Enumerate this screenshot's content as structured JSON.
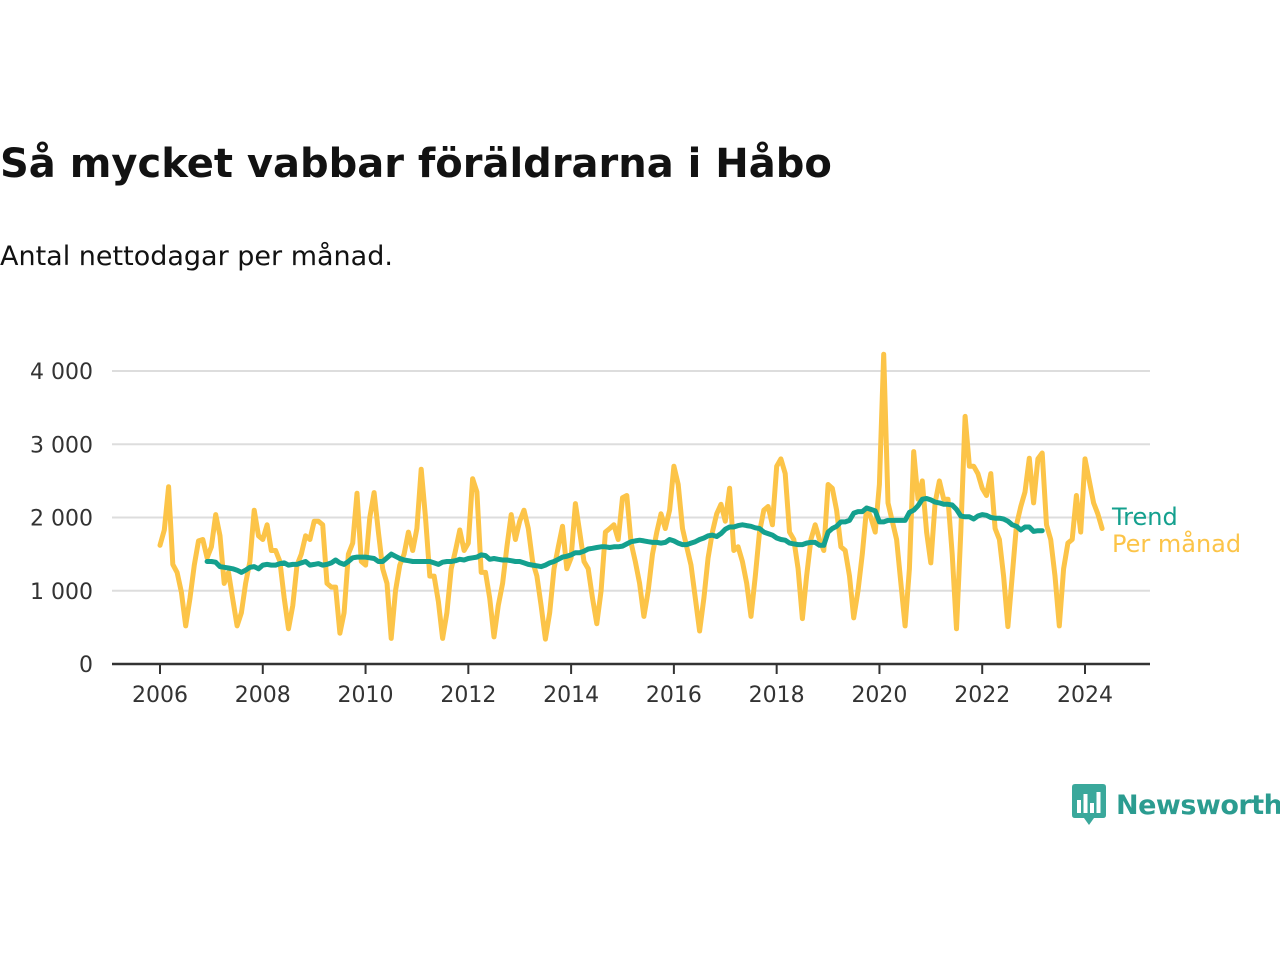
{
  "header": {
    "title": "Så mycket vabbar föräldrarna i Håbo",
    "subtitle": "Antal nettodagar per månad."
  },
  "brand": {
    "name": "Newsworthy",
    "icon": "newsworthy-bar-chart-logo-icon",
    "color": "#2b9c90"
  },
  "chart_data": {
    "type": "line",
    "title": "Så mycket vabbar föräldrarna i Håbo",
    "subtitle": "Antal nettodagar per månad.",
    "xlabel": "",
    "ylabel": "",
    "x_unit": "year (decimal, monthly)",
    "xlim": [
      2005.6,
      2025.2
    ],
    "ylim": [
      0,
      4300
    ],
    "grid": true,
    "x_ticks": [
      2006,
      2008,
      2010,
      2012,
      2014,
      2016,
      2018,
      2020,
      2022,
      2024
    ],
    "x_tick_labels": [
      "2006",
      "2008",
      "2010",
      "2012",
      "2014",
      "2016",
      "2018",
      "2020",
      "2022",
      "2024"
    ],
    "y_ticks": [
      0,
      1000,
      2000,
      3000,
      4000
    ],
    "y_tick_labels": [
      "0",
      "1 000",
      "2 000",
      "3 000",
      "4 000"
    ],
    "legend_position": "right, at line ends",
    "start": 2006.0,
    "step": 0.0833333,
    "series": [
      {
        "name": "Per månad",
        "color": "#fcc448",
        "start": 2006.0,
        "values": [
          1620,
          1830,
          2420,
          1360,
          1250,
          980,
          520,
          900,
          1350,
          1680,
          1700,
          1450,
          1600,
          2040,
          1750,
          1100,
          1250,
          880,
          520,
          700,
          1100,
          1400,
          2100,
          1750,
          1700,
          1900,
          1550,
          1550,
          1400,
          900,
          480,
          800,
          1350,
          1500,
          1750,
          1700,
          1950,
          1950,
          1900,
          1100,
          1050,
          1050,
          420,
          700,
          1500,
          1650,
          2330,
          1400,
          1350,
          2000,
          2340,
          1800,
          1300,
          1100,
          350,
          1000,
          1350,
          1500,
          1800,
          1550,
          1850,
          2660,
          2000,
          1200,
          1200,
          850,
          350,
          700,
          1300,
          1550,
          1830,
          1550,
          1650,
          2530,
          2350,
          1250,
          1250,
          900,
          370,
          800,
          1100,
          1600,
          2040,
          1700,
          1950,
          2100,
          1850,
          1400,
          1200,
          800,
          340,
          700,
          1300,
          1600,
          1880,
          1300,
          1450,
          2190,
          1800,
          1400,
          1300,
          900,
          550,
          1000,
          1800,
          1850,
          1900,
          1700,
          2270,
          2300,
          1650,
          1400,
          1100,
          650,
          1000,
          1500,
          1800,
          2050,
          1850,
          2100,
          2700,
          2450,
          1850,
          1600,
          1350,
          900,
          450,
          900,
          1450,
          1800,
          2050,
          2180,
          1950,
          2400,
          1550,
          1600,
          1400,
          1100,
          650,
          1200,
          1800,
          2100,
          2150,
          1900,
          2700,
          2800,
          2600,
          1800,
          1700,
          1300,
          620,
          1200,
          1700,
          1900,
          1700,
          1550,
          2450,
          2400,
          2100,
          1600,
          1550,
          1200,
          630,
          1000,
          1500,
          2130,
          2000,
          1800,
          2450,
          4230,
          2200,
          1950,
          1700,
          1100,
          520,
          1300,
          2900,
          2250,
          2500,
          1800,
          1380,
          2200,
          2500,
          2250,
          2250,
          1500,
          480,
          1800,
          3380,
          2700,
          2700,
          2600,
          2400,
          2300,
          2600,
          1850,
          1700,
          1200,
          510,
          1200,
          1900,
          2150,
          2350,
          2810,
          2200,
          2800,
          2880,
          1900,
          1700,
          1200,
          520,
          1300,
          1650,
          1700,
          2300,
          1800,
          2800,
          2500,
          2200,
          2050,
          1850
        ]
      },
      {
        "name": "Trend",
        "color": "#14a08e",
        "start": 2006.9167,
        "values": [
          1400,
          1400,
          1390,
          1330,
          1320,
          1310,
          1300,
          1280,
          1250,
          1280,
          1320,
          1330,
          1300,
          1350,
          1360,
          1350,
          1350,
          1370,
          1380,
          1350,
          1360,
          1360,
          1380,
          1400,
          1350,
          1360,
          1370,
          1350,
          1360,
          1380,
          1420,
          1380,
          1360,
          1400,
          1450,
          1460,
          1460,
          1460,
          1450,
          1440,
          1400,
          1400,
          1450,
          1500,
          1470,
          1440,
          1420,
          1410,
          1400,
          1400,
          1400,
          1400,
          1400,
          1380,
          1360,
          1390,
          1400,
          1400,
          1410,
          1430,
          1420,
          1440,
          1450,
          1460,
          1490,
          1480,
          1430,
          1440,
          1430,
          1420,
          1420,
          1410,
          1400,
          1400,
          1380,
          1360,
          1350,
          1340,
          1330,
          1350,
          1380,
          1400,
          1430,
          1460,
          1470,
          1490,
          1520,
          1520,
          1540,
          1570,
          1580,
          1590,
          1600,
          1600,
          1590,
          1600,
          1600,
          1610,
          1640,
          1670,
          1680,
          1690,
          1680,
          1670,
          1660,
          1660,
          1650,
          1660,
          1700,
          1680,
          1650,
          1630,
          1630,
          1650,
          1670,
          1700,
          1720,
          1750,
          1760,
          1740,
          1780,
          1840,
          1870,
          1870,
          1890,
          1900,
          1890,
          1880,
          1860,
          1850,
          1800,
          1780,
          1760,
          1720,
          1700,
          1690,
          1650,
          1640,
          1630,
          1630,
          1650,
          1660,
          1660,
          1620,
          1620,
          1800,
          1850,
          1880,
          1940,
          1940,
          1960,
          2060,
          2080,
          2080,
          2130,
          2110,
          2090,
          1940,
          1940,
          1960,
          1960,
          1960,
          1960,
          1960,
          2070,
          2100,
          2160,
          2250,
          2260,
          2240,
          2210,
          2200,
          2180,
          2180,
          2170,
          2110,
          2020,
          2010,
          2010,
          1980,
          2020,
          2040,
          2030,
          2000,
          1990,
          1990,
          1980,
          1950,
          1900,
          1880,
          1830,
          1870,
          1870,
          1810,
          1820,
          1820
        ]
      }
    ]
  }
}
